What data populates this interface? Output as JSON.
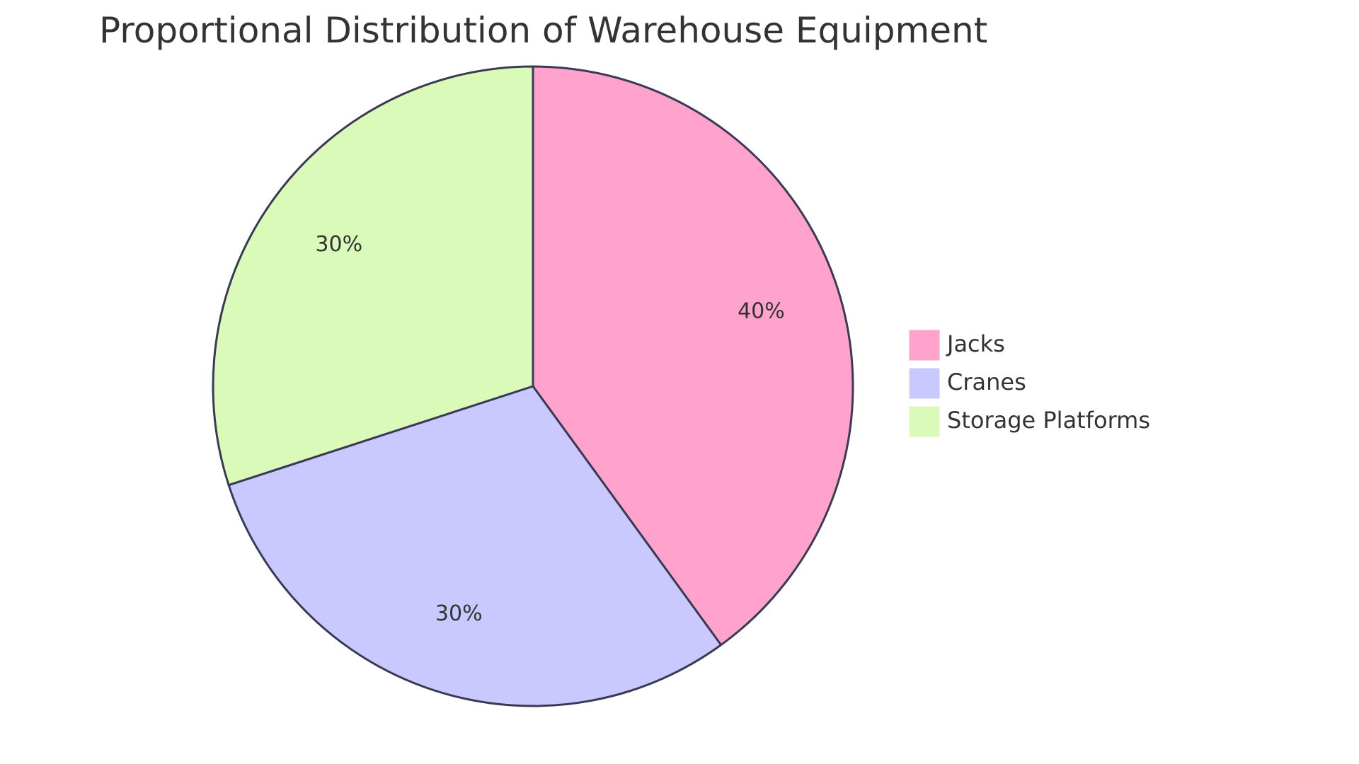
{
  "chart_data": {
    "type": "pie",
    "title": "Proportional Distribution of Warehouse Equipment",
    "categories": [
      "Jacks",
      "Cranes",
      "Storage Platforms"
    ],
    "values": [
      40,
      30,
      30
    ],
    "labels": [
      "40%",
      "30%",
      "30%"
    ],
    "colors": [
      "#ffa3cc",
      "#c9c9ff",
      "#dafab9"
    ],
    "stroke_color": "#3a3a55",
    "legend_position": "right",
    "start_angle": "top",
    "direction": "clockwise"
  }
}
